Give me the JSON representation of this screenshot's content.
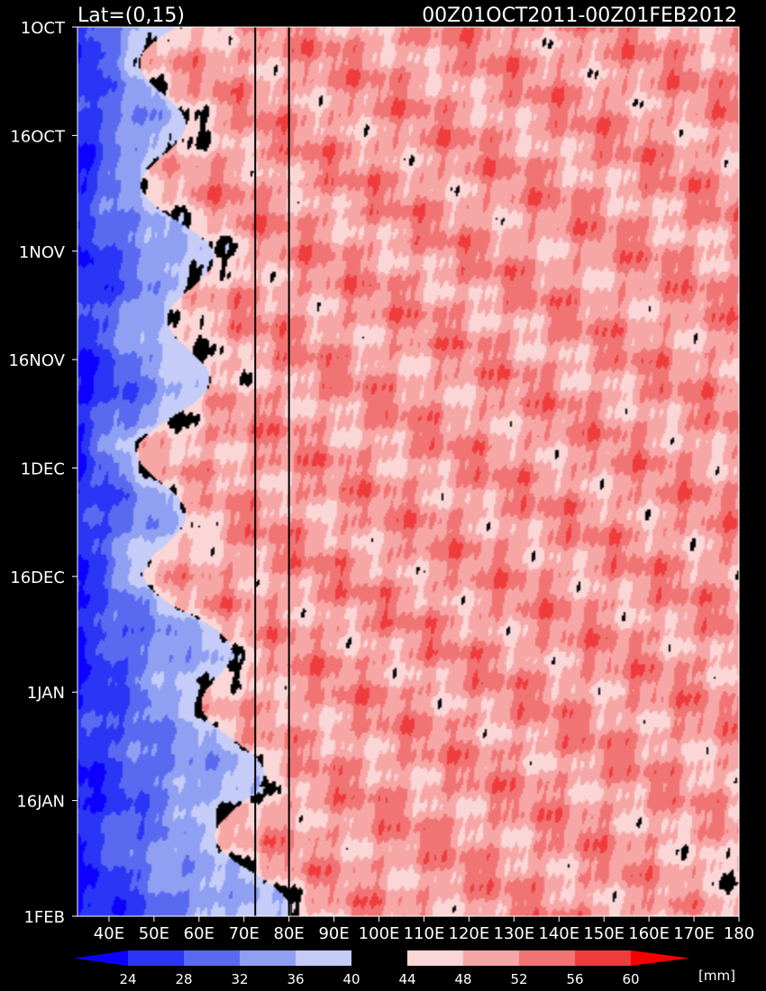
{
  "chart_data": {
    "type": "heatmap",
    "title_left": "Lat=(0,15)",
    "title_right": "00Z01OCT2011-00Z01FEB2012",
    "x_axis": {
      "range": [
        33,
        180
      ],
      "ticks": [
        40,
        50,
        60,
        70,
        80,
        90,
        100,
        110,
        120,
        130,
        140,
        150,
        160,
        170,
        180
      ],
      "tick_labels": [
        "40E",
        "50E",
        "60E",
        "70E",
        "80E",
        "90E",
        "100E",
        "110E",
        "120E",
        "130E",
        "140E",
        "150E",
        "160E",
        "170E",
        "180"
      ]
    },
    "y_axis": {
      "range_days": [
        0,
        123
      ],
      "tick_days": [
        0,
        15,
        31,
        46,
        61,
        76,
        92,
        107,
        123
      ],
      "tick_labels": [
        "1OCT",
        "16OCT",
        "1NOV",
        "16NOV",
        "1DEC",
        "16DEC",
        "1JAN",
        "16JAN",
        "1FEB"
      ]
    },
    "reference_lines_lon": [
      72.5,
      80
    ],
    "colorbar": {
      "levels": [
        24,
        28,
        32,
        36,
        40,
        44,
        48,
        52,
        56,
        60
      ],
      "labels": [
        "24",
        "28",
        "32",
        "36",
        "40",
        "44",
        "48",
        "52",
        "56",
        "60"
      ],
      "colors": [
        "#0c00ff",
        "#2a35f5",
        "#5a6af0",
        "#8f9ff2",
        "#c4ccf7",
        "#000000",
        "#fbd6d6",
        "#f7a6a6",
        "#f17474",
        "#ef3c3c",
        "#f50000"
      ],
      "unit": "[mm]"
    }
  }
}
